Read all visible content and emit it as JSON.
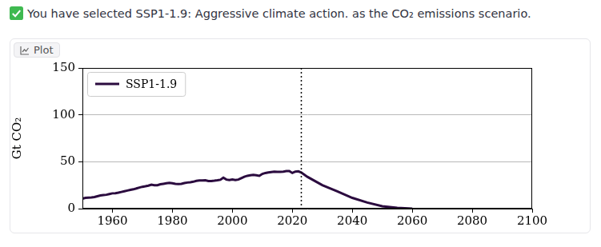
{
  "header": {
    "text": "You have selected SSP1-1.9: Aggressive climate action. as the CO₂ emissions scenario."
  },
  "tab": {
    "label": "Plot"
  },
  "chart_data": {
    "type": "line",
    "y_label": "Gt CO₂",
    "x": [
      1950,
      1951,
      1952,
      1953,
      1954,
      1955,
      1956,
      1957,
      1958,
      1959,
      1960,
      1961,
      1962,
      1963,
      1964,
      1965,
      1966,
      1967,
      1968,
      1969,
      1970,
      1971,
      1972,
      1973,
      1974,
      1975,
      1976,
      1977,
      1978,
      1979,
      1980,
      1981,
      1982,
      1983,
      1984,
      1985,
      1986,
      1987,
      1988,
      1989,
      1990,
      1991,
      1992,
      1993,
      1994,
      1995,
      1996,
      1997,
      1998,
      1999,
      2000,
      2001,
      2002,
      2003,
      2004,
      2005,
      2006,
      2007,
      2008,
      2009,
      2010,
      2011,
      2012,
      2013,
      2014,
      2015,
      2016,
      2017,
      2018,
      2019,
      2020,
      2021,
      2022,
      2023,
      2025,
      2030,
      2035,
      2040,
      2045,
      2050,
      2055,
      2060
    ],
    "series": [
      {
        "name": "SSP1-1.9",
        "color": "#2b0b3f",
        "values": [
          10.5,
          11.5,
          11.8,
          12,
          12.3,
          13.2,
          14,
          14.5,
          14.8,
          15.6,
          16.3,
          16.5,
          17,
          17.8,
          18.6,
          19.3,
          20,
          20.6,
          21.5,
          22.5,
          23.3,
          23.8,
          24.5,
          25.5,
          25,
          25,
          26,
          26.5,
          27,
          27.5,
          27,
          26.4,
          26.2,
          26.4,
          27.2,
          27.8,
          28.2,
          28.7,
          29.6,
          30,
          30,
          30.2,
          29.4,
          29.5,
          29.8,
          30.2,
          30.8,
          33,
          31,
          30.5,
          31,
          30.5,
          31,
          32.5,
          34,
          35,
          35.5,
          36,
          35.5,
          35,
          37,
          38,
          38.5,
          39,
          39.5,
          39.3,
          39.3,
          39.5,
          40,
          40,
          38,
          39.5,
          39.8,
          38.5,
          34,
          25,
          18.5,
          11.5,
          6.5,
          2.5,
          0.8,
          0
        ]
      }
    ],
    "xlim": [
      1950,
      2100
    ],
    "xticks": [
      1960,
      1980,
      2000,
      2020,
      2040,
      2060,
      2080,
      2100
    ],
    "ylim": [
      0,
      150
    ],
    "yticks": [
      0,
      50,
      100,
      150
    ],
    "grid": "y",
    "legend": "upper left",
    "vline": {
      "x": 2023,
      "line_style": "dotted"
    }
  }
}
